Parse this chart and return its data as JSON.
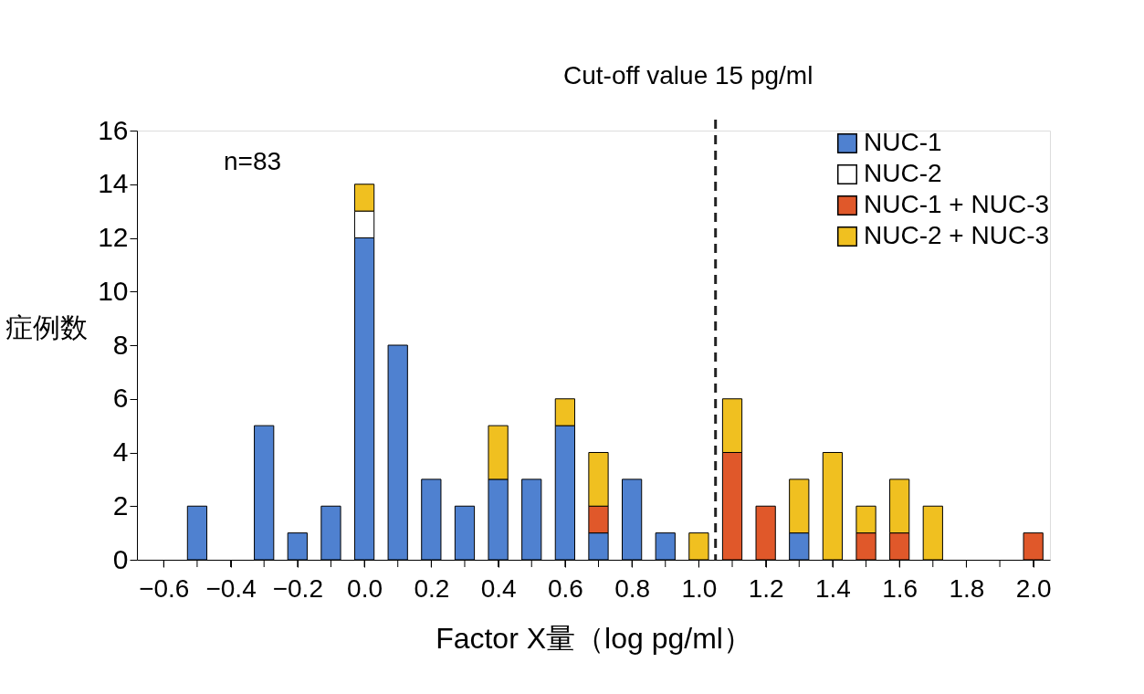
{
  "chart_data": {
    "type": "bar",
    "stacked": true,
    "x": [
      -0.5,
      -0.3,
      -0.2,
      -0.1,
      0.0,
      0.1,
      0.2,
      0.3,
      0.4,
      0.5,
      0.6,
      0.7,
      0.8,
      0.9,
      1.0,
      1.1,
      1.2,
      1.3,
      1.4,
      1.5,
      1.6,
      1.7,
      2.0
    ],
    "series": [
      {
        "name": "NUC-1",
        "color": "#4f81d0",
        "values": [
          2,
          5,
          1,
          2,
          12,
          8,
          3,
          2,
          3,
          3,
          5,
          1,
          3,
          1,
          null,
          null,
          null,
          1,
          null,
          null,
          null,
          null,
          null
        ]
      },
      {
        "name": "NUC-2",
        "color": "#ffffff",
        "values": [
          null,
          null,
          null,
          null,
          1,
          null,
          null,
          null,
          null,
          null,
          null,
          null,
          null,
          null,
          null,
          null,
          null,
          null,
          null,
          null,
          null,
          null,
          null
        ]
      },
      {
        "name": "NUC-1 + NUC-3",
        "color": "#e0582a",
        "values": [
          null,
          null,
          null,
          null,
          null,
          null,
          null,
          null,
          null,
          null,
          null,
          1,
          null,
          null,
          null,
          4,
          2,
          null,
          null,
          1,
          1,
          null,
          1
        ]
      },
      {
        "name": "NUC-2 + NUC-3",
        "color": "#f0c020",
        "values": [
          null,
          null,
          null,
          null,
          1,
          null,
          null,
          null,
          2,
          null,
          1,
          2,
          null,
          null,
          1,
          2,
          null,
          2,
          4,
          1,
          2,
          2,
          null
        ]
      }
    ],
    "xlim": [
      -0.68,
      2.05
    ],
    "xticks": [
      -0.6,
      {
        "value": -0.5,
        "label": null
      },
      -0.4,
      {
        "value": -0.3,
        "label": null
      },
      -0.2,
      {
        "value": -0.1,
        "label": null
      },
      {
        "value": 0,
        "label": "0.0"
      },
      {
        "value": 0.1,
        "label": null
      },
      0.2,
      {
        "value": 0.3,
        "label": null
      },
      0.4,
      {
        "value": 0.5,
        "label": null
      },
      0.6,
      {
        "value": 0.7,
        "label": null
      },
      0.8,
      {
        "value": 0.9,
        "label": null
      },
      {
        "value": 1,
        "label": "1.0"
      },
      {
        "value": 1.1,
        "label": null
      },
      1.2,
      {
        "value": 1.3,
        "label": null
      },
      1.4,
      {
        "value": 1.5,
        "label": null
      },
      1.6,
      {
        "value": 1.7,
        "label": null
      },
      1.8,
      {
        "value": 1.9,
        "label": null
      },
      {
        "value": 2,
        "label": "2.0"
      }
    ],
    "ylim": [
      0,
      16
    ],
    "yticks": [
      0,
      2,
      4,
      6,
      8,
      10,
      12,
      14,
      16
    ],
    "xlabel": "Factor X量（log pg/ml）",
    "ylabel": "症例数",
    "ref_lines": [
      {
        "axis": "x",
        "value": 1.05,
        "label": "Cut-off value 15 pg/ml",
        "line_style": "dashed",
        "color": "#222222"
      }
    ],
    "annotations": [
      "n=83"
    ],
    "legend": "top right"
  }
}
